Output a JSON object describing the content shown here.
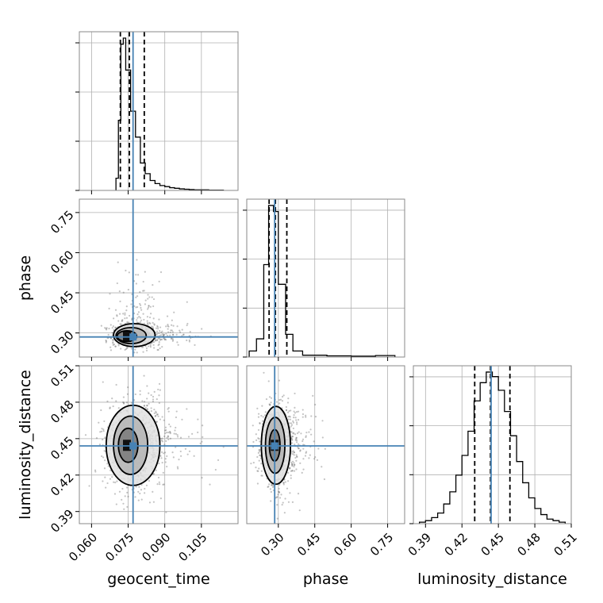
{
  "chart_data": {
    "type": "corner",
    "parameters": [
      "geocent_time",
      "phase",
      "luminosity_distance"
    ],
    "truth": {
      "geocent_time": 0.077,
      "phase": 0.285,
      "luminosity_distance": 0.444
    },
    "truth_color": "#4682b4",
    "panels": [
      {
        "id": "hist-geocent_time",
        "type": "histogram",
        "x": "geocent_time",
        "xlim": [
          0.055,
          0.12
        ],
        "xticks": [
          "0.060",
          "0.075",
          "0.090",
          "0.105"
        ],
        "quantiles": [
          0.0718,
          0.0755,
          0.0816
        ],
        "bins": [
          [
            0.07,
            0.071,
            0.08
          ],
          [
            0.071,
            0.072,
            0.46
          ],
          [
            0.072,
            0.073,
            0.96
          ],
          [
            0.073,
            0.074,
            1.0
          ],
          [
            0.074,
            0.076,
            0.79
          ],
          [
            0.076,
            0.078,
            0.52
          ],
          [
            0.078,
            0.08,
            0.35
          ],
          [
            0.08,
            0.082,
            0.18
          ],
          [
            0.082,
            0.084,
            0.11
          ],
          [
            0.084,
            0.086,
            0.065
          ],
          [
            0.086,
            0.088,
            0.045
          ],
          [
            0.088,
            0.09,
            0.032
          ],
          [
            0.09,
            0.092,
            0.025
          ],
          [
            0.092,
            0.094,
            0.018
          ],
          [
            0.094,
            0.096,
            0.014
          ],
          [
            0.096,
            0.098,
            0.01
          ],
          [
            0.098,
            0.1,
            0.008
          ],
          [
            0.1,
            0.102,
            0.006
          ],
          [
            0.102,
            0.108,
            0.004
          ],
          [
            0.108,
            0.114,
            0.002
          ]
        ]
      },
      {
        "id": "hist-phase",
        "type": "histogram",
        "x": "phase",
        "xlim": [
          0.17,
          0.82
        ],
        "xticks": [
          "0.30",
          "0.45",
          "0.60",
          "0.75"
        ],
        "quantiles": [
          0.262,
          0.288,
          0.335
        ],
        "bins": [
          [
            0.18,
            0.21,
            0.04
          ],
          [
            0.21,
            0.24,
            0.12
          ],
          [
            0.24,
            0.26,
            0.61
          ],
          [
            0.26,
            0.28,
            1.0
          ],
          [
            0.28,
            0.3,
            0.96
          ],
          [
            0.3,
            0.33,
            0.48
          ],
          [
            0.33,
            0.36,
            0.15
          ],
          [
            0.36,
            0.4,
            0.04
          ],
          [
            0.4,
            0.5,
            0.012
          ],
          [
            0.5,
            0.6,
            0.008
          ],
          [
            0.6,
            0.7,
            0.006
          ],
          [
            0.7,
            0.78,
            0.01
          ]
        ]
      },
      {
        "id": "hist-luminosity_distance",
        "type": "histogram",
        "x": "luminosity_distance",
        "xlim": [
          0.38,
          0.51
        ],
        "xticks": [
          "0.39",
          "0.42",
          "0.45",
          "0.48",
          "0.51"
        ],
        "quantiles": [
          0.4305,
          0.4435,
          0.4595
        ],
        "bins": [
          [
            0.385,
            0.39,
            0.01
          ],
          [
            0.39,
            0.395,
            0.02
          ],
          [
            0.395,
            0.4,
            0.04
          ],
          [
            0.4,
            0.405,
            0.07
          ],
          [
            0.405,
            0.41,
            0.13
          ],
          [
            0.41,
            0.415,
            0.21
          ],
          [
            0.415,
            0.42,
            0.32
          ],
          [
            0.42,
            0.425,
            0.45
          ],
          [
            0.425,
            0.43,
            0.61
          ],
          [
            0.43,
            0.435,
            0.81
          ],
          [
            0.435,
            0.44,
            0.93
          ],
          [
            0.44,
            0.445,
            1.0
          ],
          [
            0.445,
            0.45,
            0.97
          ],
          [
            0.45,
            0.455,
            0.88
          ],
          [
            0.455,
            0.46,
            0.74
          ],
          [
            0.46,
            0.465,
            0.58
          ],
          [
            0.465,
            0.47,
            0.41
          ],
          [
            0.47,
            0.475,
            0.27
          ],
          [
            0.475,
            0.48,
            0.17
          ],
          [
            0.48,
            0.485,
            0.1
          ],
          [
            0.485,
            0.49,
            0.06
          ],
          [
            0.49,
            0.495,
            0.03
          ],
          [
            0.495,
            0.5,
            0.02
          ],
          [
            0.5,
            0.505,
            0.01
          ]
        ]
      },
      {
        "id": "scatter-geocent_time-phase",
        "type": "scatter-contour",
        "x": "geocent_time",
        "y": "phase",
        "xlim": [
          0.055,
          0.12
        ],
        "ylim": [
          0.21,
          0.8
        ],
        "yticks": [
          "0.30",
          "0.45",
          "0.60",
          "0.75"
        ],
        "ylabel": "phase",
        "density_center": [
          0.0745,
          0.287
        ],
        "contours": [
          {
            "c": [
              0.0775,
              0.292
            ],
            "r": [
              0.0085,
              0.043
            ]
          },
          {
            "c": [
              0.0762,
              0.29
            ],
            "r": [
              0.0062,
              0.03
            ]
          },
          {
            "c": [
              0.0745,
              0.288
            ],
            "r": [
              0.004,
              0.02
            ]
          }
        ]
      },
      {
        "id": "scatter-geocent_time-luminosity_distance",
        "type": "scatter-contour",
        "x": "geocent_time",
        "y": "luminosity_distance",
        "xlim": [
          0.055,
          0.12
        ],
        "ylim": [
          0.38,
          0.51
        ],
        "xticks": [
          "0.060",
          "0.075",
          "0.090",
          "0.105"
        ],
        "xlabel": "geocent_time",
        "yticks": [
          "0.39",
          "0.42",
          "0.45",
          "0.48",
          "0.51"
        ],
        "ylabel": "luminosity_distance",
        "density_center": [
          0.0745,
          0.4445
        ],
        "contours": [
          {
            "c": [
              0.077,
              0.4445
            ],
            "r": [
              0.011,
              0.033
            ]
          },
          {
            "c": [
              0.076,
              0.4445
            ],
            "r": [
              0.007,
              0.024
            ]
          },
          {
            "c": [
              0.075,
              0.4445
            ],
            "r": [
              0.004,
              0.014
            ]
          }
        ]
      },
      {
        "id": "scatter-phase-luminosity_distance",
        "type": "scatter-contour",
        "x": "phase",
        "y": "luminosity_distance",
        "xlim": [
          0.17,
          0.82
        ],
        "ylim": [
          0.38,
          0.51
        ],
        "xticks": [
          "0.30",
          "0.45",
          "0.60",
          "0.75"
        ],
        "xlabel": "phase",
        "density_center": [
          0.285,
          0.4445
        ],
        "contours": [
          {
            "c": [
              0.29,
              0.4445
            ],
            "r": [
              0.06,
              0.032
            ]
          },
          {
            "c": [
              0.287,
              0.4445
            ],
            "r": [
              0.04,
              0.023
            ]
          },
          {
            "c": [
              0.285,
              0.4445
            ],
            "r": [
              0.022,
              0.013
            ]
          }
        ]
      }
    ],
    "bottom_labels": {
      "geocent_time": "geocent_time",
      "phase": "phase",
      "luminosity_distance": "luminosity_distance"
    },
    "grid": true
  }
}
